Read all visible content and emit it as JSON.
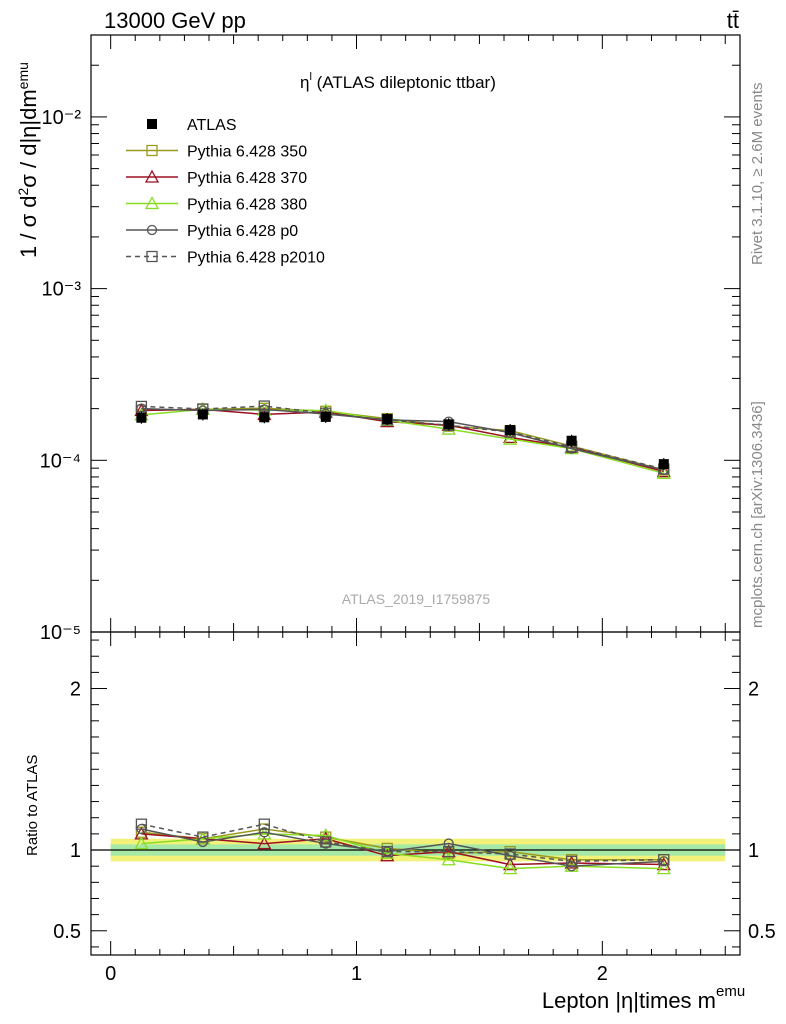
{
  "header": {
    "energy_label": "13000 GeV pp",
    "process_label": "tt̄"
  },
  "side_labels": {
    "rivet": "Rivet 3.1.10, ≥ 2.6M events",
    "mcplots": "mcplots.cern.ch [arXiv:1306.3436]"
  },
  "plot": {
    "title_main": "η",
    "title_sup": "l",
    "title_rest": " (ATLAS dileptonic ttbar)",
    "watermark": "ATLAS_2019_I1759875",
    "ylabel": "1 / σ  d²σ / d|η|dm^emu",
    "ratio_ylabel": "Ratio to ATLAS",
    "xlabel_main": "Lepton |η|times m",
    "xlabel_sup": "emu"
  },
  "colors": {
    "atlas": "#000000",
    "p350": "#9a9a1e",
    "p370": "#9b1022",
    "p380": "#88dd22",
    "p0": "#555555",
    "p2010": "#555555",
    "band_outer": "#f2f27a",
    "band_inner": "#a6e8a6"
  },
  "chart_data": {
    "type": "line",
    "y_scale": "log",
    "xlim": [
      -0.08,
      2.56
    ],
    "ylim": [
      1e-05,
      0.03
    ],
    "ratio_ylim": [
      0.35,
      2.35
    ],
    "x_ticks": [
      "0",
      "1",
      "2"
    ],
    "y_ticks": [
      "10⁻⁵",
      "10⁻⁴",
      "10⁻³",
      "10⁻²"
    ],
    "ratio_ticks": [
      "0.5",
      "1",
      "2"
    ],
    "x": [
      0.125,
      0.375,
      0.625,
      0.875,
      1.125,
      1.375,
      1.625,
      1.875,
      2.25
    ],
    "atlas": {
      "name": "ATLAS",
      "values": [
        0.000177,
        0.000185,
        0.000178,
        0.000179,
        0.000174,
        0.000162,
        0.00015,
        0.00013,
        9.5e-05
      ],
      "ratio_band_outer": 0.07,
      "ratio_band_inner": 0.035
    },
    "series": [
      {
        "name": "Pythia 6.428 350",
        "key": "p350",
        "marker": "square-open",
        "dash": false,
        "values": [
          0.000196,
          0.000198,
          0.000201,
          0.000193,
          0.000175,
          0.000158,
          0.000149,
          0.000121,
          8.8e-05
        ],
        "ratio": [
          1.11,
          1.07,
          1.13,
          1.08,
          1.01,
          0.98,
          0.99,
          0.94,
          0.94
        ]
      },
      {
        "name": "Pythia 6.428 370",
        "key": "p370",
        "marker": "triangle-open",
        "dash": false,
        "values": [
          0.000195,
          0.000198,
          0.000185,
          0.000191,
          0.000168,
          0.00016,
          0.000136,
          0.000119,
          8.6e-05
        ],
        "ratio": [
          1.1,
          1.07,
          1.04,
          1.07,
          0.965,
          0.99,
          0.91,
          0.92,
          0.91
        ]
      },
      {
        "name": "Pythia 6.428 380",
        "key": "p380",
        "marker": "triangle-open",
        "dash": false,
        "values": [
          0.000184,
          0.000198,
          0.000196,
          0.000195,
          0.000171,
          0.000152,
          0.000133,
          0.000117,
          8.4e-05
        ],
        "ratio": [
          1.04,
          1.07,
          1.1,
          1.09,
          0.98,
          0.94,
          0.885,
          0.9,
          0.885
        ]
      },
      {
        "name": "Pythia 6.428 p0",
        "key": "p0",
        "marker": "circle-open",
        "dash": false,
        "values": [
          0.0002,
          0.000195,
          0.000198,
          0.000186,
          0.000172,
          0.000168,
          0.000145,
          0.000117,
          8.8e-05
        ],
        "ratio": [
          1.13,
          1.05,
          1.11,
          1.04,
          0.99,
          1.04,
          0.965,
          0.9,
          0.93
        ]
      },
      {
        "name": "Pythia 6.428 p2010",
        "key": "p2010",
        "marker": "square-open",
        "dash": true,
        "values": [
          0.000206,
          0.000199,
          0.000207,
          0.000188,
          0.000172,
          0.00016,
          0.000146,
          0.00012,
          8.9e-05
        ],
        "ratio": [
          1.16,
          1.08,
          1.16,
          1.05,
          0.99,
          0.99,
          0.975,
          0.93,
          0.94
        ]
      }
    ]
  }
}
